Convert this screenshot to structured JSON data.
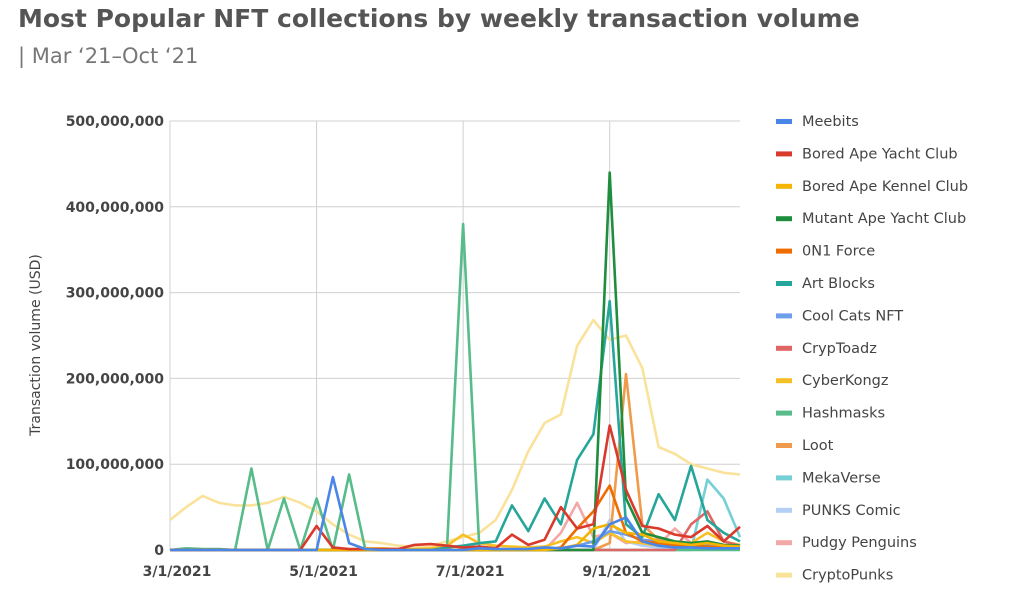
{
  "header": {
    "title": "Most Popular NFT collections by weekly transaction volume",
    "subtitle": "| Mar ‘21–Oct ‘21"
  },
  "chart_data": {
    "type": "line",
    "ylabel": "Transaction volume (USD)",
    "ylim": [
      0,
      500000000
    ],
    "yticks": [
      0,
      100000000,
      200000000,
      300000000,
      400000000,
      500000000
    ],
    "ytick_labels": [
      "0",
      "100,000,000",
      "200,000,000",
      "300,000,000",
      "400,000,000",
      "500,000,000"
    ],
    "xlim": [
      0,
      35
    ],
    "xticks": [
      0,
      9,
      18,
      27
    ],
    "xtick_labels": [
      "3/1/2021",
      "5/1/2021",
      "7/1/2021",
      "9/1/2021"
    ],
    "xlabel": "",
    "grid": true,
    "legend_position": "right",
    "series": [
      {
        "name": "Meebits",
        "color": "#4a86e8",
        "values": [
          0,
          0,
          0,
          0,
          0,
          0,
          0,
          0,
          0,
          0,
          85000000,
          8000000,
          1000000,
          0,
          0,
          0,
          0,
          0,
          0,
          2000000,
          1000000,
          1000000,
          1000000,
          3000000,
          2000000,
          5000000,
          4000000,
          30000000,
          38000000,
          10000000,
          5000000,
          3000000,
          3000000,
          2000000,
          2000000,
          2000000
        ]
      },
      {
        "name": "Bored Ape Yacht Club",
        "color": "#d93a2b",
        "values": [
          0,
          0,
          0,
          0,
          0,
          0,
          0,
          0,
          0,
          28000000,
          3000000,
          1000000,
          1000000,
          1000000,
          1000000,
          6000000,
          7000000,
          5000000,
          3000000,
          4000000,
          2000000,
          18000000,
          6000000,
          12000000,
          50000000,
          25000000,
          30000000,
          145000000,
          70000000,
          28000000,
          25000000,
          18000000,
          15000000,
          28000000,
          10000000,
          27000000
        ]
      },
      {
        "name": "Bored Ape Kennel Club",
        "color": "#f4b400",
        "values": [
          0,
          0,
          0,
          0,
          0,
          0,
          0,
          0,
          0,
          0,
          0,
          0,
          0,
          0,
          0,
          0,
          0,
          0,
          0,
          0,
          0,
          0,
          0,
          0,
          2000000,
          6000000,
          25000000,
          30000000,
          20000000,
          18000000,
          10000000,
          8000000,
          6000000,
          8000000,
          5000000,
          4000000
        ]
      },
      {
        "name": "Mutant Ape Yacht Club",
        "color": "#1e8e3e",
        "values": [
          0,
          0,
          0,
          0,
          0,
          0,
          0,
          0,
          0,
          0,
          0,
          0,
          0,
          0,
          0,
          0,
          0,
          0,
          0,
          0,
          0,
          0,
          0,
          0,
          0,
          0,
          0,
          440000000,
          60000000,
          20000000,
          15000000,
          10000000,
          8000000,
          10000000,
          6000000,
          5000000
        ]
      },
      {
        "name": "0N1 Force",
        "color": "#ef6c00",
        "values": [
          0,
          0,
          0,
          0,
          0,
          0,
          0,
          0,
          0,
          0,
          0,
          0,
          0,
          0,
          0,
          0,
          0,
          0,
          0,
          0,
          0,
          0,
          0,
          0,
          3000000,
          25000000,
          45000000,
          75000000,
          20000000,
          10000000,
          8000000,
          6000000,
          5000000,
          4000000,
          3000000,
          3000000
        ]
      },
      {
        "name": "Art Blocks",
        "color": "#26a69a",
        "values": [
          0,
          0,
          0,
          0,
          0,
          0,
          0,
          0,
          0,
          0,
          0,
          0,
          0,
          0,
          0,
          0,
          0,
          3000000,
          5000000,
          8000000,
          10000000,
          52000000,
          22000000,
          60000000,
          30000000,
          105000000,
          135000000,
          290000000,
          30000000,
          15000000,
          65000000,
          35000000,
          98000000,
          35000000,
          20000000,
          10000000
        ]
      },
      {
        "name": "Cool Cats NFT",
        "color": "#6d9eeb",
        "values": [
          0,
          0,
          0,
          0,
          0,
          0,
          0,
          0,
          0,
          0,
          0,
          0,
          0,
          0,
          0,
          0,
          0,
          0,
          0,
          0,
          0,
          0,
          0,
          0,
          2000000,
          5000000,
          10000000,
          22000000,
          18000000,
          12000000,
          10000000,
          8000000,
          7000000,
          6000000,
          5000000,
          4000000
        ]
      },
      {
        "name": "CrypToadz",
        "color": "#e06666",
        "values": [
          0,
          0,
          0,
          0,
          0,
          0,
          0,
          0,
          0,
          0,
          0,
          0,
          0,
          0,
          0,
          0,
          0,
          0,
          0,
          0,
          0,
          0,
          0,
          0,
          0,
          0,
          0,
          0,
          0,
          0,
          0,
          0,
          30000000,
          45000000,
          10000000,
          5000000
        ]
      },
      {
        "name": "CyberKongz",
        "color": "#f6c026",
        "values": [
          0,
          0,
          0,
          0,
          0,
          0,
          0,
          0,
          0,
          0,
          0,
          0,
          2000000,
          2000000,
          1000000,
          1000000,
          2000000,
          5000000,
          18000000,
          8000000,
          5000000,
          4000000,
          3000000,
          4000000,
          10000000,
          15000000,
          8000000,
          20000000,
          10000000,
          8000000,
          5000000,
          6000000,
          8000000,
          20000000,
          10000000,
          6000000
        ]
      },
      {
        "name": "Hashmasks",
        "color": "#57bb8a",
        "values": [
          0,
          2000000,
          1000000,
          1000000,
          0,
          95000000,
          0,
          60000000,
          0,
          60000000,
          0,
          88000000,
          0,
          0,
          0,
          0,
          0,
          0,
          380000000,
          0,
          0,
          0,
          0,
          0,
          0,
          0,
          0,
          0,
          0,
          0,
          0,
          0,
          0,
          0,
          0,
          0
        ]
      },
      {
        "name": "Loot",
        "color": "#f09a4b",
        "values": [
          0,
          0,
          0,
          0,
          0,
          0,
          0,
          0,
          0,
          0,
          0,
          0,
          0,
          0,
          0,
          0,
          0,
          0,
          0,
          0,
          0,
          0,
          0,
          0,
          0,
          0,
          0,
          8000000,
          205000000,
          30000000,
          12000000,
          8000000,
          6000000,
          5000000,
          4000000,
          3000000
        ]
      },
      {
        "name": "MekaVerse",
        "color": "#76cfd6",
        "values": [
          0,
          0,
          0,
          0,
          0,
          0,
          0,
          0,
          0,
          0,
          0,
          0,
          0,
          0,
          0,
          0,
          0,
          0,
          0,
          0,
          0,
          0,
          0,
          0,
          0,
          0,
          0,
          0,
          0,
          0,
          0,
          0,
          0,
          82000000,
          60000000,
          15000000
        ]
      },
      {
        "name": "PUNKS Comic",
        "color": "#b4cff5",
        "values": [
          0,
          0,
          0,
          0,
          0,
          0,
          0,
          0,
          0,
          0,
          0,
          0,
          0,
          0,
          0,
          0,
          0,
          0,
          0,
          0,
          0,
          0,
          0,
          0,
          0,
          0,
          0,
          35000000,
          10000000,
          5000000,
          3000000,
          2000000,
          2000000,
          1000000,
          1000000,
          1000000
        ]
      },
      {
        "name": "Pudgy Penguins",
        "color": "#f4a7a7",
        "values": [
          0,
          0,
          0,
          0,
          0,
          0,
          0,
          0,
          0,
          0,
          0,
          0,
          0,
          0,
          0,
          0,
          0,
          0,
          0,
          0,
          0,
          0,
          0,
          0,
          20000000,
          55000000,
          15000000,
          20000000,
          8000000,
          10000000,
          6000000,
          25000000,
          8000000,
          5000000,
          4000000,
          3000000
        ]
      },
      {
        "name": "CryptoPunks",
        "color": "#fae29a",
        "values": [
          35000000,
          50000000,
          63000000,
          55000000,
          52000000,
          52000000,
          55000000,
          62000000,
          55000000,
          45000000,
          30000000,
          18000000,
          10000000,
          8000000,
          5000000,
          4000000,
          5000000,
          10000000,
          15000000,
          20000000,
          35000000,
          70000000,
          115000000,
          148000000,
          158000000,
          238000000,
          268000000,
          245000000,
          250000000,
          212000000,
          120000000,
          112000000,
          100000000,
          95000000,
          90000000,
          88000000
        ]
      }
    ]
  }
}
